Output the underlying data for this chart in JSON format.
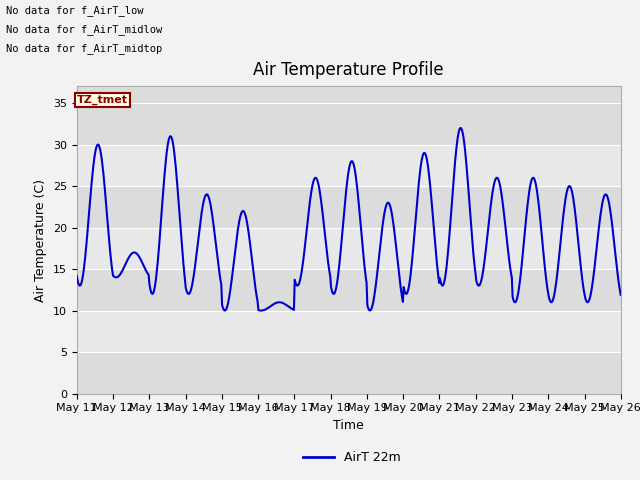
{
  "title": "Air Temperature Profile",
  "xlabel": "Time",
  "ylabel": "Air Temperature (C)",
  "ylim": [
    0,
    37
  ],
  "yticks": [
    0,
    5,
    10,
    15,
    20,
    25,
    30,
    35
  ],
  "line_color": "#0000CC",
  "line_width": 1.5,
  "no_data_texts": [
    "No data for f_AirT_low",
    "No data for f_AirT_midlow",
    "No data for f_AirT_midtop"
  ],
  "tz_label": "TZ_tmet",
  "legend_label": "AirT 22m",
  "x_tick_labels": [
    "May 11",
    "May 12",
    "May 13",
    "May 14",
    "May 15",
    "May 16",
    "May 17",
    "May 18",
    "May 19",
    "May 20",
    "May 21",
    "May 22",
    "May 23",
    "May 24",
    "May 25",
    "May 26"
  ],
  "day_max": [
    30,
    17,
    31,
    24,
    22,
    11,
    26,
    28,
    23,
    29,
    32,
    26,
    26,
    25,
    24
  ],
  "day_min": [
    13,
    14,
    12,
    12,
    10,
    10,
    13,
    12,
    10,
    12,
    13,
    13,
    11,
    11,
    11
  ],
  "n_days": 15,
  "band_colors": [
    "#DCDCDC",
    "#E8E8E8"
  ]
}
